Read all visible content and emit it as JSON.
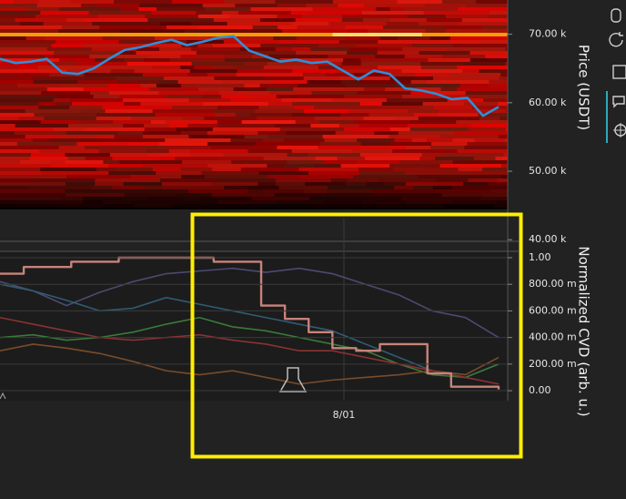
{
  "chart_data": [
    {
      "type": "line",
      "y_label": "Price (USDT)",
      "ylim": [
        39.5,
        75
      ],
      "yticks": [
        {
          "value": 70,
          "label": "70.00 k"
        },
        {
          "value": 60,
          "label": "60.00 k"
        },
        {
          "value": 50,
          "label": "50.00 k"
        },
        {
          "value": 40,
          "label": "40.00 k"
        }
      ],
      "series": [
        {
          "color": "#2f8fd8",
          "values": [
            66.4,
            65.8,
            66.0,
            66.4,
            64.4,
            64.2,
            65.0,
            66.4,
            67.7,
            68.1,
            68.7,
            69.2,
            68.4,
            68.9,
            69.5,
            69.7,
            67.6,
            66.8,
            66.0,
            66.3,
            65.8,
            66.0,
            64.7,
            63.4,
            64.7,
            64.2,
            62.1,
            61.8,
            61.3,
            60.5,
            60.7,
            58.1,
            59.4
          ]
        }
      ]
    },
    {
      "type": "line",
      "y_label": "Normalized CVD (arb. u.)",
      "x_tick_label": "8/01",
      "ylim": [
        -0.075,
        1.048
      ],
      "yticks": [
        {
          "value": 1,
          "label": "1.00"
        },
        {
          "value": 0.8,
          "label": "800.00 m"
        },
        {
          "value": 0.6,
          "label": "600.00 m"
        },
        {
          "value": 0.4,
          "label": "400.00 m"
        },
        {
          "value": 0.2,
          "label": "200.00 m"
        },
        {
          "value": 0,
          "label": "0.00"
        }
      ],
      "series": [
        {
          "color": "#4c4a72",
          "values": [
            0.82,
            0.75,
            0.64,
            0.74,
            0.82,
            0.88,
            0.9,
            0.92,
            0.89,
            0.92,
            0.88,
            0.8,
            0.72,
            0.6,
            0.55,
            0.4
          ]
        },
        {
          "color": "#2f5c74",
          "values": [
            0.8,
            0.75,
            0.68,
            0.6,
            0.62,
            0.7,
            0.65,
            0.6,
            0.55,
            0.5,
            0.45,
            0.35,
            0.25,
            0.15,
            0.1,
            0.2
          ]
        },
        {
          "color": "#3a7a3a",
          "values": [
            0.4,
            0.42,
            0.38,
            0.4,
            0.44,
            0.5,
            0.55,
            0.48,
            0.45,
            0.4,
            0.35,
            0.3,
            0.2,
            0.12,
            0.1,
            0.2
          ]
        },
        {
          "color": "#7a4c2a",
          "values": [
            0.3,
            0.35,
            0.32,
            0.28,
            0.22,
            0.15,
            0.12,
            0.15,
            0.1,
            0.05,
            0.08,
            0.1,
            0.12,
            0.15,
            0.12,
            0.25
          ]
        },
        {
          "color": "#8a3232",
          "values": [
            0.55,
            0.5,
            0.45,
            0.4,
            0.38,
            0.4,
            0.42,
            0.38,
            0.35,
            0.3,
            0.3,
            0.25,
            0.2,
            0.15,
            0.1,
            0.05
          ]
        },
        {
          "color": "#c8837a",
          "step": true,
          "values": [
            0.88,
            0.93,
            0.93,
            0.97,
            0.97,
            1.0,
            1.0,
            1.0,
            1.0,
            0.97,
            0.97,
            0.64,
            0.54,
            0.44,
            0.32,
            0.3,
            0.35,
            0.35,
            0.13,
            0.03,
            0.03,
            0.01
          ]
        }
      ]
    }
  ]
}
